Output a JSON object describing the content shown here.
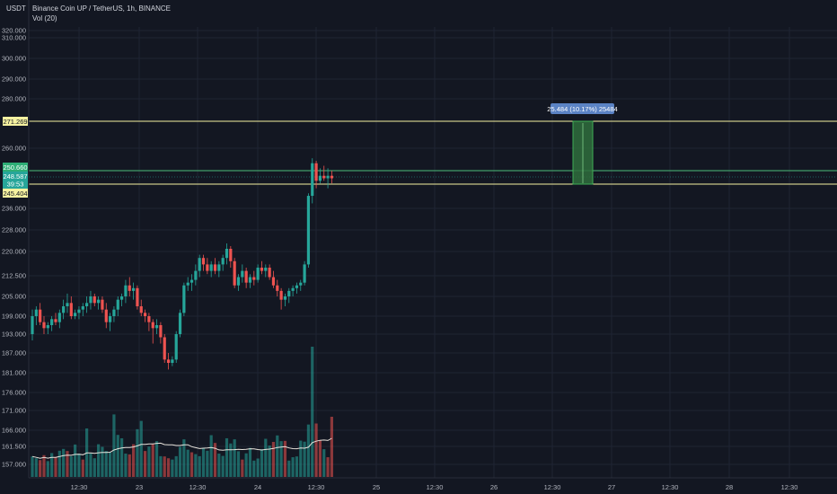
{
  "header": {
    "symbol": "Binance Coin UP / TetherUS, 1h, BINANCE",
    "indicator": "Vol (20)",
    "currency": "USDT"
  },
  "chart_data": {
    "type": "candlestick",
    "title": "Binance Coin UP / TetherUS, 1h, BINANCE",
    "y_axis": [
      "320.000",
      "310.000",
      "300.000",
      "290.000",
      "280.000",
      "260.000",
      "236.000",
      "228.000",
      "220.000",
      "212.500",
      "205.000",
      "199.000",
      "193.000",
      "187.000",
      "181.000",
      "176.000",
      "171.000",
      "166.000",
      "161.500",
      "157.000"
    ],
    "x_axis": [
      "12:30",
      "23",
      "12:30",
      "24",
      "12:30",
      "25",
      "12:30",
      "26",
      "12:30",
      "27",
      "12:30",
      "28",
      "12:30"
    ],
    "price_labels": {
      "upper_line": "271.269",
      "upper_green": "250.660",
      "current": "248.587",
      "countdown": "39:53",
      "lower_line": "245.404"
    },
    "measure_label": "25.484 (10.17%) 25484",
    "candles": [
      [
        193,
        201,
        191,
        199
      ],
      [
        199,
        202,
        196,
        201
      ],
      [
        201,
        203,
        196,
        197
      ],
      [
        197,
        199,
        193,
        195
      ],
      [
        195,
        197,
        193,
        196
      ],
      [
        196,
        199,
        194,
        198
      ],
      [
        198,
        200,
        196,
        197
      ],
      [
        197,
        201,
        195,
        200
      ],
      [
        200,
        204,
        198,
        202
      ],
      [
        202,
        206,
        200,
        203
      ],
      [
        203,
        205,
        198,
        199
      ],
      [
        199,
        201,
        198,
        200
      ],
      [
        200,
        202,
        198,
        201
      ],
      [
        201,
        203,
        199,
        202
      ],
      [
        202,
        205,
        200,
        203
      ],
      [
        203,
        207,
        201,
        205
      ],
      [
        205,
        206,
        202,
        203
      ],
      [
        203,
        205,
        201,
        204
      ],
      [
        204,
        205,
        200,
        201
      ],
      [
        201,
        203,
        195,
        197
      ],
      [
        197,
        200,
        194,
        199
      ],
      [
        199,
        202,
        197,
        201
      ],
      [
        201,
        205,
        199,
        204
      ],
      [
        204,
        206,
        202,
        205
      ],
      [
        205,
        211,
        203,
        209
      ],
      [
        209,
        212,
        205,
        207
      ],
      [
        207,
        210,
        204,
        208
      ],
      [
        208,
        209,
        201,
        202
      ],
      [
        202,
        204,
        199,
        200
      ],
      [
        200,
        201,
        197,
        199
      ],
      [
        199,
        200,
        194,
        197
      ],
      [
        197,
        198,
        190,
        195
      ],
      [
        195,
        198,
        193,
        196
      ],
      [
        196,
        197,
        190,
        192
      ],
      [
        192,
        193,
        184,
        185
      ],
      [
        185,
        187,
        182,
        184
      ],
      [
        184,
        186,
        183,
        185
      ],
      [
        185,
        194,
        184,
        193
      ],
      [
        193,
        201,
        192,
        200
      ],
      [
        200,
        210,
        199,
        209
      ],
      [
        209,
        212,
        207,
        210
      ],
      [
        210,
        213,
        207,
        211
      ],
      [
        211,
        216,
        209,
        214
      ],
      [
        214,
        219,
        212,
        218
      ],
      [
        218,
        219,
        214,
        216
      ],
      [
        216,
        218,
        213,
        214
      ],
      [
        214,
        217,
        212,
        216
      ],
      [
        216,
        218,
        213,
        214
      ],
      [
        214,
        217,
        212,
        216
      ],
      [
        216,
        219,
        214,
        218
      ],
      [
        218,
        223,
        216,
        221
      ],
      [
        221,
        222,
        215,
        217
      ],
      [
        217,
        218,
        208,
        209
      ],
      [
        209,
        213,
        207,
        212
      ],
      [
        212,
        216,
        210,
        214
      ],
      [
        214,
        215,
        208,
        210
      ],
      [
        210,
        213,
        208,
        212
      ],
      [
        212,
        214,
        209,
        211
      ],
      [
        211,
        216,
        210,
        215
      ],
      [
        215,
        217,
        213,
        214
      ],
      [
        214,
        216,
        212,
        215
      ],
      [
        215,
        216,
        211,
        212
      ],
      [
        212,
        214,
        208,
        209
      ],
      [
        209,
        211,
        205,
        207
      ],
      [
        207,
        208,
        201,
        204
      ],
      [
        204,
        206,
        202,
        205
      ],
      [
        205,
        208,
        203,
        207
      ],
      [
        207,
        209,
        205,
        208
      ],
      [
        208,
        210,
        206,
        209
      ],
      [
        209,
        211,
        207,
        210
      ],
      [
        210,
        217,
        209,
        216
      ],
      [
        216,
        242,
        215,
        241
      ],
      [
        241,
        256,
        238,
        254
      ],
      [
        254,
        255,
        244,
        247
      ],
      [
        247,
        252,
        246,
        249
      ],
      [
        249,
        253,
        247,
        248
      ],
      [
        248,
        252,
        244,
        249
      ],
      [
        249,
        251,
        246,
        248
      ]
    ],
    "volumes": [
      {
        "v": 7.9,
        "up": true
      },
      {
        "v": 7.2,
        "up": true
      },
      {
        "v": 6.5,
        "up": false
      },
      {
        "v": 8.4,
        "up": false
      },
      {
        "v": 6.1,
        "up": true
      },
      {
        "v": 9.2,
        "up": true
      },
      {
        "v": 7.5,
        "up": false
      },
      {
        "v": 10.1,
        "up": true
      },
      {
        "v": 10.8,
        "up": true
      },
      {
        "v": 10.0,
        "up": false
      },
      {
        "v": 8.0,
        "up": true
      },
      {
        "v": 12.5,
        "up": true
      },
      {
        "v": 9.0,
        "up": true
      },
      {
        "v": 6.7,
        "up": false
      },
      {
        "v": 18.7,
        "up": true
      },
      {
        "v": 9.1,
        "up": true
      },
      {
        "v": 7.2,
        "up": true
      },
      {
        "v": 12.6,
        "up": true
      },
      {
        "v": 11.6,
        "up": true
      },
      {
        "v": 10.0,
        "up": true
      },
      {
        "v": 9.5,
        "up": true
      },
      {
        "v": 24.1,
        "up": true
      },
      {
        "v": 16.2,
        "up": true
      },
      {
        "v": 14.9,
        "up": true
      },
      {
        "v": 9.0,
        "up": true
      },
      {
        "v": 8.7,
        "up": false
      },
      {
        "v": 12.6,
        "up": false
      },
      {
        "v": 18.4,
        "up": true
      },
      {
        "v": 21.6,
        "up": true
      },
      {
        "v": 10.0,
        "up": false
      },
      {
        "v": 11.7,
        "up": true
      },
      {
        "v": 12.6,
        "up": false
      },
      {
        "v": 13.8,
        "up": true
      },
      {
        "v": 8.0,
        "up": true
      },
      {
        "v": 7.9,
        "up": false
      },
      {
        "v": 7.2,
        "up": false
      },
      {
        "v": 6.7,
        "up": true
      },
      {
        "v": 8.0,
        "up": true
      },
      {
        "v": 11.6,
        "up": true
      },
      {
        "v": 14.5,
        "up": true
      },
      {
        "v": 10.5,
        "up": true
      },
      {
        "v": 9.5,
        "up": false
      },
      {
        "v": 8.8,
        "up": true
      },
      {
        "v": 8.0,
        "up": true
      },
      {
        "v": 11.2,
        "up": true
      },
      {
        "v": 10.1,
        "up": true
      },
      {
        "v": 16.1,
        "up": true
      },
      {
        "v": 13.1,
        "up": false
      },
      {
        "v": 9.0,
        "up": true
      },
      {
        "v": 8.1,
        "up": true
      },
      {
        "v": 14.9,
        "up": true
      },
      {
        "v": 12.9,
        "up": true
      },
      {
        "v": 14.5,
        "up": true
      },
      {
        "v": 9.9,
        "up": true
      },
      {
        "v": 6.7,
        "up": false
      },
      {
        "v": 9.1,
        "up": true
      },
      {
        "v": 11.2,
        "up": true
      },
      {
        "v": 6.3,
        "up": true
      },
      {
        "v": 7.1,
        "up": true
      },
      {
        "v": 10.7,
        "up": true
      },
      {
        "v": 14.7,
        "up": true
      },
      {
        "v": 12.1,
        "up": true
      },
      {
        "v": 13.5,
        "up": false
      },
      {
        "v": 16.0,
        "up": true
      },
      {
        "v": 13.8,
        "up": true
      },
      {
        "v": 13.9,
        "up": false
      },
      {
        "v": 6.3,
        "up": true
      },
      {
        "v": 7.6,
        "up": true
      },
      {
        "v": 7.9,
        "up": true
      },
      {
        "v": 14.0,
        "up": true
      },
      {
        "v": 13.6,
        "up": true
      },
      {
        "v": 20.2,
        "up": true
      },
      {
        "v": 50.2,
        "up": true
      },
      {
        "v": 20.6,
        "up": false
      },
      {
        "v": 14.0,
        "up": false
      },
      {
        "v": 10.7,
        "up": true
      },
      {
        "v": 7.6,
        "up": false
      },
      {
        "v": 23.2,
        "up": false
      }
    ]
  }
}
